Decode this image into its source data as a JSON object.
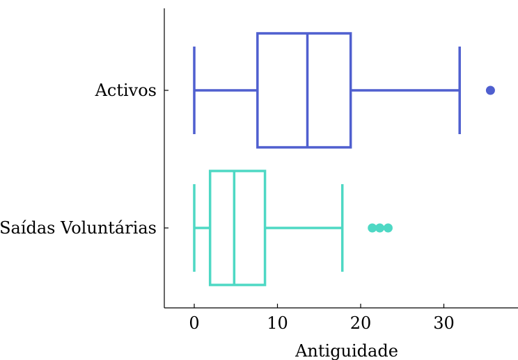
{
  "chart_data": {
    "type": "boxplot",
    "title": "",
    "xlabel": "Antiguidade",
    "ylabel": "",
    "xlim": [
      -3.5,
      38
    ],
    "xticks": [
      0,
      10,
      20,
      30
    ],
    "orientation": "horizontal",
    "grid": false,
    "series": [
      {
        "name": "Activos",
        "color": "#4f5fcf",
        "whisker_low": 0,
        "q1": 7.6,
        "median": 13.6,
        "q3": 18.8,
        "whisker_high": 31.9,
        "outliers": [
          35.6
        ]
      },
      {
        "name": "Saídas Voluntárias",
        "color": "#4ed8c4",
        "whisker_low": 0,
        "q1": 1.9,
        "median": 4.8,
        "q3": 8.5,
        "whisker_high": 17.8,
        "outliers": [
          21.4,
          22.3,
          23.3
        ]
      }
    ]
  }
}
